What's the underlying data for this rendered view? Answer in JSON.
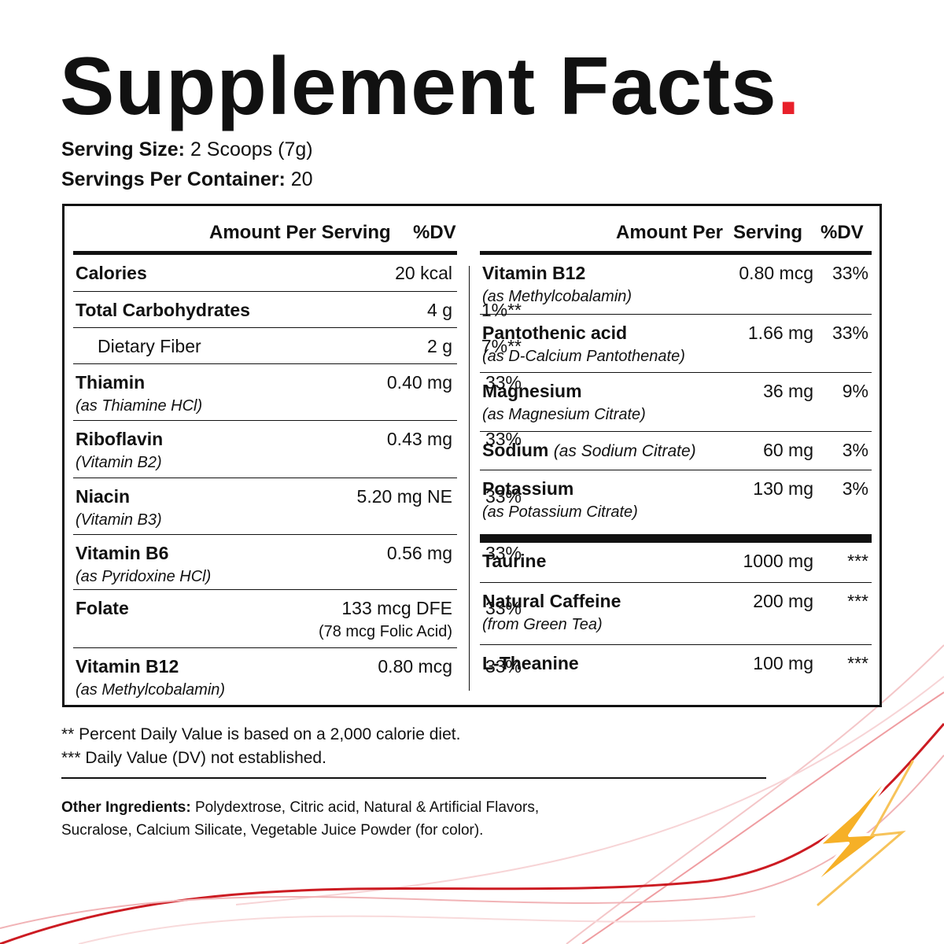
{
  "title": "Supplement Facts",
  "title_dot": ".",
  "serving_size_label": "Serving Size:",
  "serving_size_value": "2 Scoops (7g)",
  "servings_per_container_label": "Servings Per Container:",
  "servings_per_container_value": "20",
  "left_header": {
    "amount": "Amount Per Serving",
    "dv": "%DV"
  },
  "right_header": {
    "amount": "Amount Per",
    "serving": "Serving",
    "dv": "%DV"
  },
  "left_rows": [
    {
      "name": "Calories",
      "sub": "",
      "amount": "20 kcal",
      "amount2": "",
      "dv": ""
    },
    {
      "name": "Total Carbohydrates",
      "sub": "",
      "amount": "4 g",
      "amount2": "",
      "dv": "1%**"
    },
    {
      "name": "Dietary Fiber",
      "sub": "",
      "amount": "2 g",
      "amount2": "",
      "dv": "7%**"
    },
    {
      "name": "Thiamin",
      "sub": "(as Thiamine HCl)",
      "amount": "0.40 mg",
      "amount2": "",
      "dv": "33%"
    },
    {
      "name": "Riboflavin",
      "sub": "(Vitamin B2)",
      "amount": "0.43 mg",
      "amount2": "",
      "dv": "33%"
    },
    {
      "name": "Niacin",
      "sub": "(Vitamin B3)",
      "amount": "5.20 mg NE",
      "amount2": "",
      "dv": "33%"
    },
    {
      "name": "Vitamin B6",
      "sub": "(as Pyridoxine HCl)",
      "amount": "0.56 mg",
      "amount2": "",
      "dv": "33%"
    },
    {
      "name": "Folate",
      "sub": "",
      "amount": "133 mcg DFE",
      "amount2": "(78 mcg Folic Acid)",
      "dv": "33%"
    },
    {
      "name": "Vitamin B12",
      "sub": "(as Methylcobalamin)",
      "amount": "0.80 mcg",
      "amount2": "",
      "dv": "33%"
    }
  ],
  "right_rows": [
    {
      "name": "Vitamin B12",
      "inline": "",
      "sub": "(as Methylcobalamin)",
      "amount": "0.80 mcg",
      "dv": "33%"
    },
    {
      "name": "Pantothenic acid",
      "inline": "",
      "sub": "(as D-Calcium Pantothenate)",
      "amount": "1.66 mg",
      "dv": "33%"
    },
    {
      "name": "Magnesium",
      "inline": "",
      "sub": "(as Magnesium Citrate)",
      "amount": "36 mg",
      "dv": "9%"
    },
    {
      "name": "Sodium",
      "inline": "(as Sodium Citrate)",
      "sub": "",
      "amount": "60 mg",
      "dv": "3%"
    },
    {
      "name": "Potassium",
      "inline": "",
      "sub": "(as Potassium Citrate)",
      "amount": "130 mg",
      "dv": "3%"
    }
  ],
  "right_rows_2": [
    {
      "name": "Taurine",
      "sub": "",
      "amount": "1000 mg",
      "dv": "***"
    },
    {
      "name": "Natural Caffeine",
      "sub": "(from Green Tea)",
      "amount": "200 mg",
      "dv": "***"
    },
    {
      "name": "L-Theanine",
      "sub": "",
      "amount": "100 mg",
      "dv": "***"
    }
  ],
  "footnote_1": "** Percent Daily Value is based on a 2,000 calorie diet.",
  "footnote_2": "*** Daily Value (DV) not established.",
  "other_ingredients_label": "Other Ingredients:",
  "other_ingredients_value": "Polydextrose, Citric acid, Natural & Artificial Flavors, Sucralose, Calcium Silicate, Vegetable Juice Powder (for color).",
  "icons": {
    "decor": "lightning-bolt-icon",
    "accent": "#e8202a",
    "bolt": "#f5a623"
  }
}
